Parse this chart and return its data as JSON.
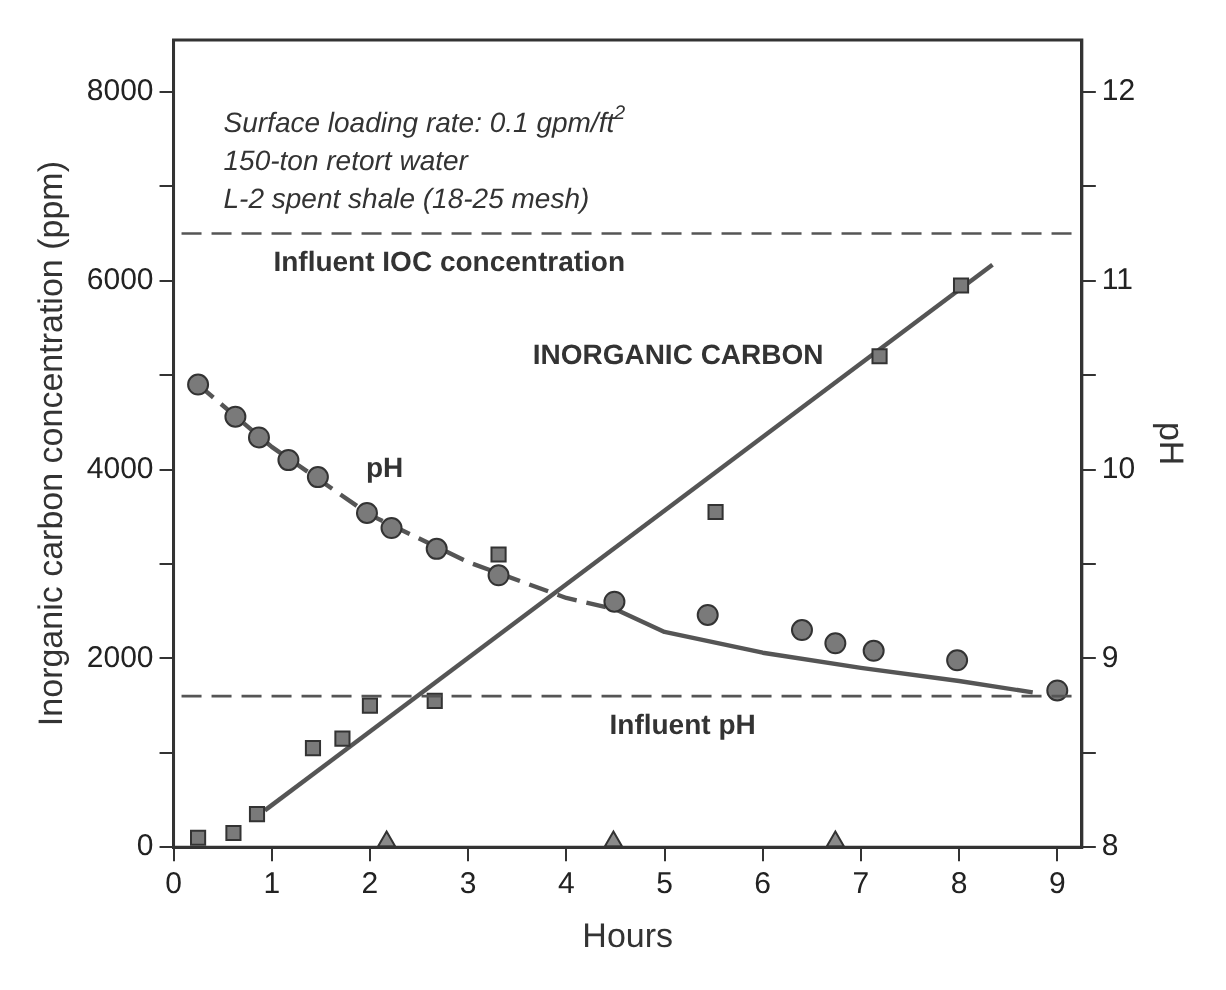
{
  "chart_data": {
    "type": "scatter",
    "xlabel": "Hours",
    "ylabel": "Inorganic carbon concentration (ppm)",
    "y2label": "pH",
    "xlim": [
      0,
      9.25
    ],
    "xticks": [
      0,
      1,
      2,
      3,
      4,
      5,
      6,
      7,
      8,
      9
    ],
    "ylim": [
      0,
      8550
    ],
    "yticks": [
      0,
      {
        "value": 1000,
        "label": null
      },
      2000,
      {
        "value": 3000,
        "label": null
      },
      4000,
      {
        "value": 5000,
        "label": null
      },
      6000,
      {
        "value": 7000,
        "label": null
      },
      8000
    ],
    "y2lim": [
      8,
      12.275
    ],
    "y2ticks": [
      8,
      {
        "value": 8.5,
        "label": null
      },
      9,
      {
        "value": 9.5,
        "label": null
      },
      10,
      {
        "value": 10.5,
        "label": null
      },
      11,
      {
        "value": 11.5,
        "label": null
      },
      12
    ],
    "grid": false,
    "legend": false,
    "series": [
      {
        "name": "INORGANIC CARBON",
        "marker": "square",
        "color": "#7a7a7a",
        "x": [
          0.25,
          0.61,
          0.85,
          1.42,
          1.72,
          2.0,
          2.66,
          3.31,
          5.52,
          7.19,
          8.02
        ],
        "values": [
          100,
          150,
          350,
          1050,
          1150,
          1500,
          1550,
          3100,
          3550,
          5200,
          5950
        ]
      },
      {
        "type": "line",
        "marker": "none",
        "line_style": "solid",
        "color": "#555555",
        "x": [
          0.93,
          8.34
        ],
        "values": [
          390,
          6170
        ]
      },
      {
        "name": "pH",
        "marker": "circle",
        "axis": "y2",
        "color": "#7a7a7a",
        "x": [
          0.25,
          0.63,
          0.87,
          1.17,
          1.47,
          1.97,
          2.22,
          2.68,
          3.31,
          4.49,
          5.44,
          6.4,
          6.74,
          7.13,
          7.98,
          9.0
        ],
        "values": [
          10.45,
          10.28,
          10.17,
          10.05,
          9.96,
          9.77,
          9.69,
          9.58,
          9.44,
          9.3,
          9.23,
          9.15,
          9.08,
          9.04,
          8.99,
          8.83
        ]
      },
      {
        "type": "line",
        "marker": "none",
        "axis": "y2",
        "line_style": "dashed",
        "color": "#555555",
        "x": [
          0.25,
          1.0,
          2.0,
          3.0,
          4.0,
          4.5
        ],
        "values": [
          10.45,
          10.12,
          9.76,
          9.51,
          9.32,
          9.26
        ]
      },
      {
        "type": "line",
        "marker": "none",
        "axis": "y2",
        "line_style": "solid",
        "color": "#555555",
        "x": [
          4.5,
          5.0,
          6.0,
          7.0,
          8.0,
          8.75
        ],
        "values": [
          9.26,
          9.14,
          9.03,
          8.95,
          8.88,
          8.82
        ]
      },
      {
        "marker": "triangle",
        "color": "#8a8a8a",
        "x": [
          2.17,
          4.48,
          6.74
        ],
        "values": [
          60,
          60,
          60
        ]
      }
    ],
    "ref_lines": [
      {
        "axis": "y",
        "value": 6500,
        "label": "Influent IOC concentration",
        "line_style": "dashed",
        "color": "#555555"
      },
      {
        "axis": "y2",
        "value": 8.8,
        "label": "Influent pH",
        "line_style": "dashed",
        "color": "#555555"
      }
    ],
    "annotations": [
      "Surface loading rate: 0.1 gpm/ft$^{2}$",
      "150-ton retort water",
      "L-2 spent shale (18-25 mesh)"
    ]
  }
}
